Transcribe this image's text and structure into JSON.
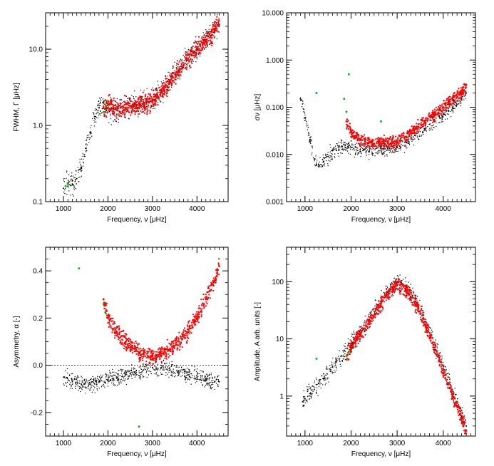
{
  "chart_data": [
    {
      "id": "fwhm",
      "type": "scatter",
      "title": "",
      "xlabel": "Frequency, ν [μHz]",
      "ylabel": "FWHM, Γ [μHz]",
      "xlim": [
        600,
        4700
      ],
      "ylim": [
        0.1,
        30
      ],
      "yscale": "log",
      "xticks": [
        1000,
        2000,
        3000,
        4000
      ],
      "xtick_labels": [
        "1000",
        "2000",
        "3000",
        "4000"
      ],
      "yticks": [
        0.1,
        1.0,
        10.0
      ],
      "ytick_labels": [
        "0.1",
        "1.0",
        "10.0"
      ],
      "series": [
        {
          "name": "black",
          "color": "#000000",
          "x": [
            1000,
            1100,
            1200,
            1300,
            1400,
            1500,
            1600,
            1700,
            1800,
            1900,
            2000,
            2200,
            2400,
            2600,
            2800,
            3000,
            3200,
            3400,
            3600,
            3800,
            4000,
            4200,
            4400,
            4500
          ],
          "y": [
            0.15,
            0.16,
            0.17,
            0.2,
            0.28,
            0.5,
            0.8,
            1.3,
            1.7,
            2.0,
            1.5,
            1.6,
            1.7,
            1.9,
            2.0,
            2.2,
            2.8,
            3.8,
            5.5,
            7.5,
            10.0,
            13.5,
            18.0,
            20.0
          ]
        },
        {
          "name": "red",
          "color": "#ff0000",
          "x": [
            1900,
            2000,
            2200,
            2400,
            2600,
            2800,
            3000,
            3200,
            3400,
            3600,
            3800,
            4000,
            4200,
            4400,
            4500
          ],
          "y": [
            1.7,
            1.9,
            1.6,
            1.7,
            1.8,
            1.9,
            2.1,
            2.7,
            3.7,
            5.2,
            7.2,
            9.7,
            13.0,
            17.5,
            21.0
          ]
        },
        {
          "name": "green",
          "color": "#00c000",
          "x": [
            1050,
            1100,
            1900,
            1950,
            2000
          ],
          "y": [
            0.16,
            0.17,
            1.5,
            1.8,
            2.1
          ]
        }
      ]
    },
    {
      "id": "sigma",
      "type": "scatter",
      "title": "",
      "xlabel": "Frequency, ν [μHz]",
      "ylabel": "σν [μHz]",
      "xlim": [
        600,
        4700
      ],
      "ylim": [
        0.001,
        10
      ],
      "yscale": "log",
      "xticks": [
        1000,
        2000,
        3000,
        4000
      ],
      "xtick_labels": [
        "1000",
        "2000",
        "3000",
        "4000"
      ],
      "yticks": [
        0.001,
        0.01,
        0.1,
        1,
        10
      ],
      "ytick_labels": [
        "0.001",
        "0.010",
        "0.100",
        "1.000",
        "10.000"
      ],
      "series": [
        {
          "name": "black",
          "color": "#000000",
          "x": [
            900,
            1000,
            1100,
            1200,
            1300,
            1400,
            1500,
            1600,
            1800,
            2000,
            2200,
            2400,
            2600,
            2800,
            3000,
            3200,
            3400,
            3600,
            3800,
            4000,
            4200,
            4400,
            4500
          ],
          "y": [
            0.15,
            0.06,
            0.02,
            0.008,
            0.006,
            0.007,
            0.009,
            0.012,
            0.015,
            0.014,
            0.013,
            0.012,
            0.012,
            0.013,
            0.014,
            0.018,
            0.025,
            0.035,
            0.05,
            0.07,
            0.1,
            0.15,
            0.2
          ]
        },
        {
          "name": "red",
          "color": "#ff0000",
          "x": [
            1900,
            2000,
            2200,
            2400,
            2600,
            2800,
            3000,
            3200,
            3400,
            3600,
            3800,
            4000,
            4200,
            4400,
            4500
          ],
          "y": [
            0.05,
            0.03,
            0.02,
            0.018,
            0.018,
            0.018,
            0.019,
            0.024,
            0.035,
            0.05,
            0.07,
            0.1,
            0.14,
            0.2,
            0.3
          ]
        },
        {
          "name": "green",
          "color": "#00c000",
          "x": [
            1250,
            1850,
            1900,
            1950,
            2650
          ],
          "y": [
            0.2,
            0.15,
            0.08,
            0.5,
            0.05
          ]
        }
      ]
    },
    {
      "id": "asym",
      "type": "scatter",
      "title": "",
      "xlabel": "Frequency, ν [μHz]",
      "ylabel": "Asymmetry, α [-]",
      "xlim": [
        600,
        4700
      ],
      "ylim": [
        -0.3,
        0.5
      ],
      "yscale": "linear",
      "zero_line": true,
      "xticks": [
        1000,
        2000,
        3000,
        4000
      ],
      "xtick_labels": [
        "1000",
        "2000",
        "3000",
        "4000"
      ],
      "yticks": [
        -0.2,
        0.0,
        0.2,
        0.4
      ],
      "ytick_labels": [
        "-0.2",
        "0.0",
        "0.2",
        "0.4"
      ],
      "series": [
        {
          "name": "black",
          "color": "#000000",
          "x": [
            1000,
            1200,
            1400,
            1600,
            1800,
            2000,
            2200,
            2400,
            2600,
            2800,
            3000,
            3200,
            3400,
            3600,
            3800,
            4000,
            4200,
            4400,
            4500
          ],
          "y": [
            -0.05,
            -0.07,
            -0.08,
            -0.08,
            -0.07,
            -0.06,
            -0.05,
            -0.04,
            -0.03,
            -0.02,
            -0.01,
            -0.01,
            -0.02,
            -0.03,
            -0.04,
            -0.05,
            -0.06,
            -0.07,
            -0.07
          ]
        },
        {
          "name": "red",
          "color": "#ff0000",
          "x": [
            1900,
            2000,
            2200,
            2400,
            2600,
            2800,
            3000,
            3200,
            3400,
            3600,
            3800,
            4000,
            4200,
            4400,
            4500
          ],
          "y": [
            0.28,
            0.2,
            0.14,
            0.1,
            0.07,
            0.05,
            0.04,
            0.05,
            0.07,
            0.1,
            0.14,
            0.2,
            0.28,
            0.36,
            0.42
          ]
        },
        {
          "name": "green",
          "color": "#00c000",
          "x": [
            1350,
            1900,
            1950,
            2700
          ],
          "y": [
            0.41,
            0.26,
            0.22,
            -0.26
          ]
        }
      ]
    },
    {
      "id": "amplitude",
      "type": "scatter",
      "title": "",
      "xlabel": "Frequency, ν [μHz]",
      "ylabel": "Amplitude, A arb. units [-]",
      "xlim": [
        600,
        4700
      ],
      "ylim": [
        0.2,
        400
      ],
      "yscale": "log",
      "xticks": [
        1000,
        2000,
        3000,
        4000
      ],
      "xtick_labels": [
        "1000",
        "2000",
        "3000",
        "4000"
      ],
      "yticks": [
        1,
        10,
        100
      ],
      "ytick_labels": [
        "1",
        "10",
        "100"
      ],
      "series": [
        {
          "name": "black",
          "color": "#000000",
          "x": [
            950,
            1000,
            1200,
            1400,
            1600,
            1800,
            2000,
            2200,
            2400,
            2600,
            2800,
            3000,
            3200,
            3400,
            3600,
            3800,
            4000,
            4200,
            4400,
            4500
          ],
          "y": [
            0.8,
            0.9,
            1.3,
            2.0,
            3.2,
            5.0,
            8.0,
            13,
            22,
            38,
            65,
            100,
            80,
            45,
            20,
            8,
            3,
            1.1,
            0.45,
            0.3
          ]
        },
        {
          "name": "red",
          "color": "#ff0000",
          "x": [
            1900,
            2000,
            2200,
            2400,
            2600,
            2800,
            3000,
            3200,
            3400,
            3600,
            3800,
            4000,
            4200,
            4400,
            4500
          ],
          "y": [
            5,
            7,
            12,
            20,
            35,
            60,
            90,
            70,
            40,
            18,
            7,
            2.5,
            1.0,
            0.4,
            0.25
          ]
        },
        {
          "name": "green",
          "color": "#00c000",
          "x": [
            1250,
            1900,
            1950
          ],
          "y": [
            4.5,
            5.0,
            6.0
          ]
        }
      ]
    }
  ]
}
